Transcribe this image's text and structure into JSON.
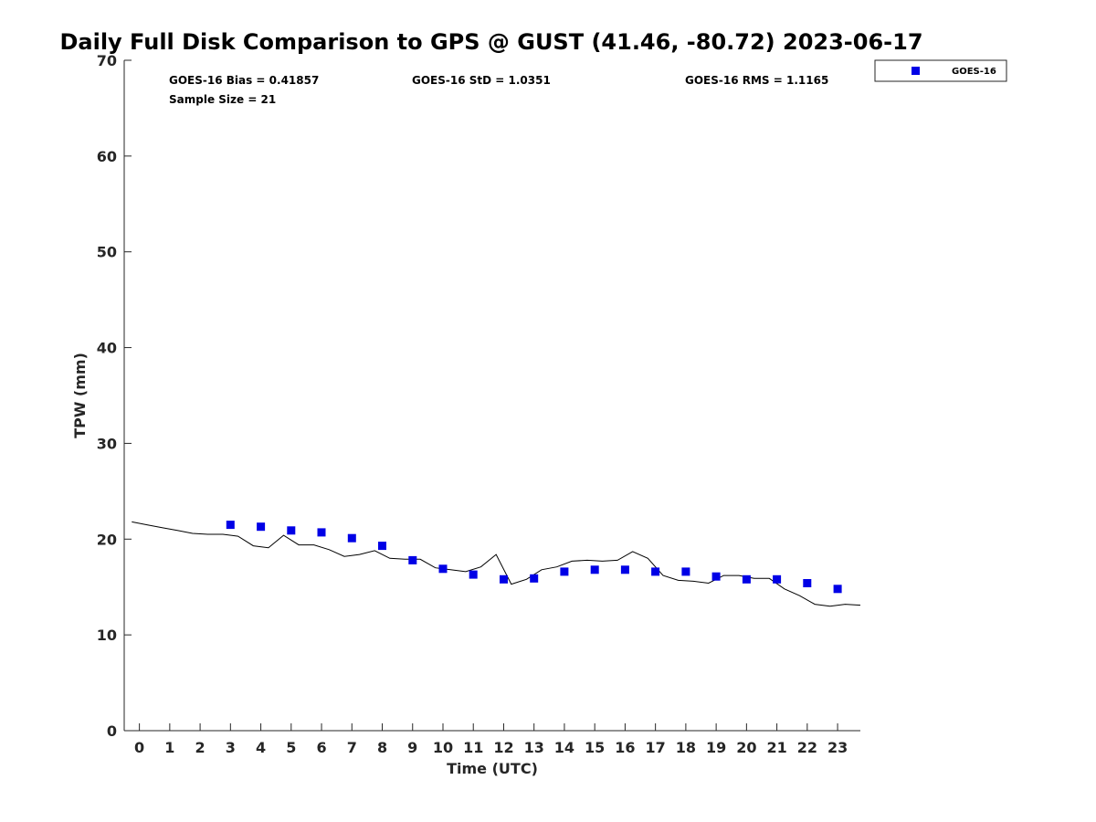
{
  "chart_data": {
    "type": "scatter",
    "title": "Daily Full Disk Comparison to GPS @ GUST (41.46, -80.72) 2023-06-17",
    "xlabel": "Time (UTC)",
    "ylabel": "TPW (mm)",
    "xlim": [
      -0.5,
      23.75
    ],
    "ylim": [
      0,
      70
    ],
    "x_ticks": [
      0,
      1,
      2,
      3,
      4,
      5,
      6,
      7,
      8,
      9,
      10,
      11,
      12,
      13,
      14,
      15,
      16,
      17,
      18,
      19,
      20,
      21,
      22,
      23
    ],
    "y_ticks": [
      0,
      10,
      20,
      30,
      40,
      50,
      60,
      70
    ],
    "grid": false,
    "legend_position": "top-right",
    "stats": {
      "bias": "GOES-16 Bias = 0.41857",
      "std": "GOES-16 StD = 1.0351",
      "rms": "GOES-16 RMS = 1.1165",
      "sample": "Sample Size = 21"
    },
    "series": [
      {
        "name": "GOES-16",
        "marker": "square",
        "color": "#0000e6",
        "x": [
          3,
          4,
          5,
          6,
          7,
          8,
          9,
          10,
          11,
          12,
          13,
          14,
          15,
          16,
          17,
          18,
          19,
          20,
          21,
          22,
          23
        ],
        "y": [
          21.5,
          21.3,
          20.9,
          20.7,
          20.1,
          19.3,
          17.8,
          16.9,
          16.3,
          15.8,
          15.9,
          16.6,
          16.8,
          16.8,
          16.6,
          16.6,
          16.1,
          15.8,
          15.8,
          15.4,
          14.8
        ]
      },
      {
        "marker": "none",
        "color": "#000000",
        "x": [
          -0.25,
          0.25,
          0.75,
          1.25,
          1.75,
          2.25,
          2.75,
          3.25,
          3.75,
          4.25,
          4.75,
          5.25,
          5.75,
          6.25,
          6.75,
          7.25,
          7.75,
          8.25,
          8.75,
          9.25,
          9.75,
          10.25,
          10.75,
          11.25,
          11.75,
          12.25,
          12.75,
          13.25,
          13.75,
          14.25,
          14.75,
          15.25,
          15.75,
          16.25,
          16.75,
          17.25,
          17.75,
          18.25,
          18.75,
          19.25,
          19.75,
          20.25,
          20.75,
          21.25,
          21.75,
          22.25,
          22.75,
          23.25,
          23.75
        ],
        "y": [
          21.8,
          21.5,
          21.2,
          20.9,
          20.6,
          20.5,
          20.5,
          20.3,
          19.3,
          19.1,
          20.4,
          19.4,
          19.4,
          18.9,
          18.2,
          18.4,
          18.8,
          18.0,
          17.9,
          17.9,
          17.0,
          16.8,
          16.6,
          17.1,
          18.4,
          15.3,
          15.8,
          16.8,
          17.1,
          17.7,
          17.8,
          17.7,
          17.8,
          18.7,
          18.0,
          16.2,
          15.7,
          15.6,
          15.4,
          16.2,
          16.2,
          15.9,
          15.9,
          14.8,
          14.1,
          13.2,
          13.0,
          13.2,
          13.1
        ]
      }
    ]
  }
}
